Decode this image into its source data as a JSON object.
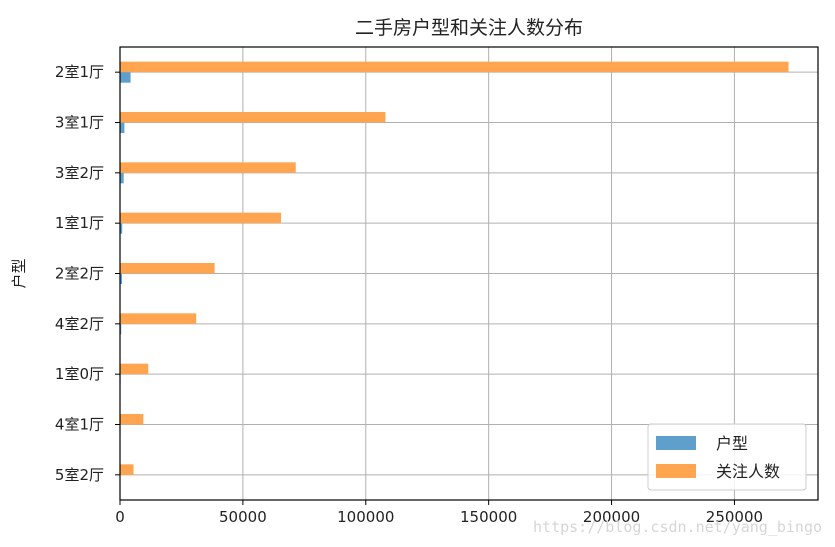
{
  "chart_data": {
    "type": "bar",
    "orientation": "horizontal",
    "title": "二手房户型和关注人数分布",
    "xlabel": "",
    "ylabel": "户型",
    "categories": [
      "2室1厅",
      "3室1厅",
      "3室2厅",
      "1室1厅",
      "2室2厅",
      "4室2厅",
      "1室0厅",
      "4室1厅",
      "5室2厅"
    ],
    "series": [
      {
        "name": "户型",
        "color": "#5f9fcb",
        "values": [
          4300,
          1800,
          1500,
          900,
          800,
          500,
          250,
          220,
          150
        ]
      },
      {
        "name": "关注人数",
        "color": "#ffa54f",
        "values": [
          272000,
          108000,
          71500,
          65500,
          38500,
          31000,
          11500,
          9500,
          5500
        ]
      }
    ],
    "xlim": [
      0,
      284000
    ],
    "xticks": [
      0,
      50000,
      100000,
      150000,
      200000,
      250000
    ],
    "grid": true,
    "legend": "bottom-right"
  },
  "watermark": "https://blog.csdn.net/yang_bingo"
}
